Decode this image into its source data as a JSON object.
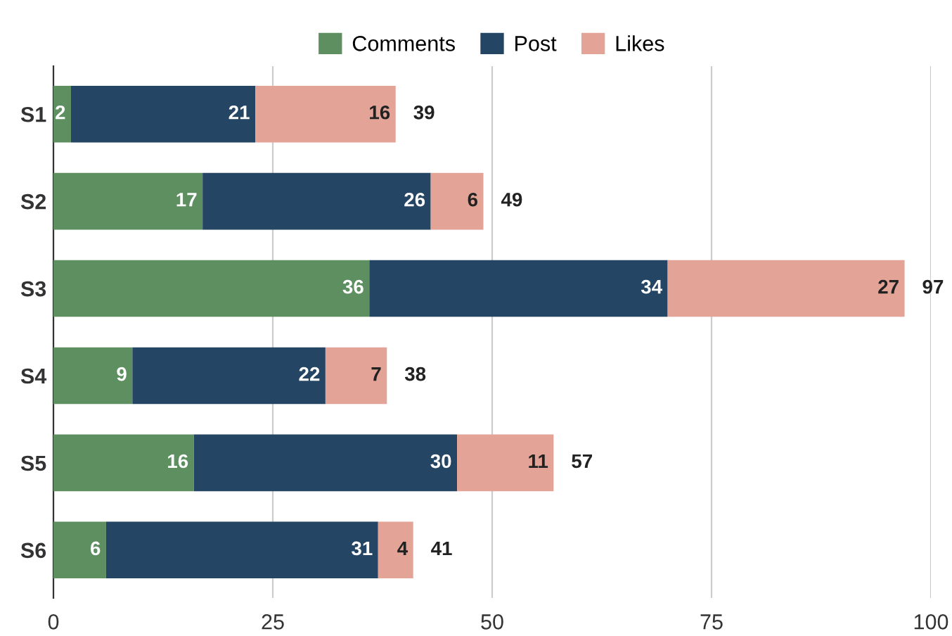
{
  "chart_data": {
    "type": "bar",
    "orientation": "horizontal",
    "stacked": true,
    "categories": [
      "S1",
      "S2",
      "S3",
      "S4",
      "S5",
      "S6"
    ],
    "series": [
      {
        "name": "Comments",
        "color": "#5e8f61",
        "values": [
          2,
          17,
          36,
          9,
          16,
          6
        ]
      },
      {
        "name": "Post",
        "color": "#244563",
        "values": [
          21,
          26,
          34,
          22,
          30,
          31
        ]
      },
      {
        "name": "Likes",
        "color": "#e3a497",
        "values": [
          16,
          6,
          27,
          7,
          11,
          4
        ]
      }
    ],
    "data_labels": true,
    "totals": [
      "39",
      "49",
      "97",
      "38",
      "57",
      "41"
    ],
    "xlim": [
      0,
      100
    ],
    "xticks": [
      0,
      25,
      50,
      75,
      100
    ],
    "grid": "x",
    "legend": "top"
  }
}
